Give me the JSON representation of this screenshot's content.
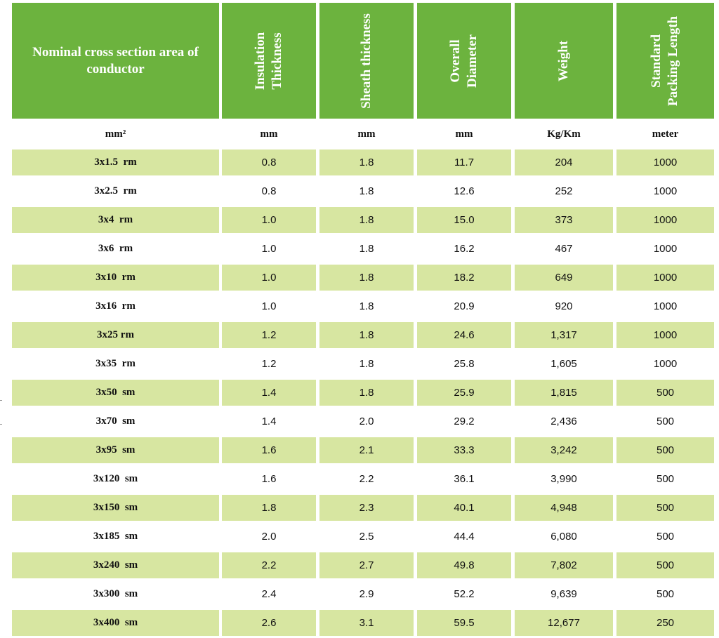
{
  "headers": [
    {
      "text": "Nominal cross section area of conductor",
      "vertical": false
    },
    {
      "text": "Insulation Thickness",
      "vertical": true,
      "lines": [
        "Insulation",
        "Thickness"
      ]
    },
    {
      "text": "Sheath thickness",
      "vertical": true,
      "lines": [
        "Sheath thickness"
      ]
    },
    {
      "text": "Overall Diameter",
      "vertical": true,
      "lines": [
        "Overall",
        "Diameter"
      ]
    },
    {
      "text": "Weight",
      "vertical": true,
      "lines": [
        "Weight"
      ]
    },
    {
      "text": "Standard Packing Length",
      "vertical": true,
      "lines": [
        "Standard",
        "Packing Length"
      ]
    }
  ],
  "units": [
    "mm²",
    "mm",
    "mm",
    "mm",
    "Kg/Km",
    "meter"
  ],
  "rows": [
    [
      "3x1.5  rm",
      "0.8",
      "1.8",
      "11.7",
      "204",
      "1000"
    ],
    [
      "3x2.5  rm",
      "0.8",
      "1.8",
      "12.6",
      "252",
      "1000"
    ],
    [
      "3x4  rm",
      "1.0",
      "1.8",
      "15.0",
      "373",
      "1000"
    ],
    [
      "3x6  rm",
      "1.0",
      "1.8",
      "16.2",
      "467",
      "1000"
    ],
    [
      "3x10  rm",
      "1.0",
      "1.8",
      "18.2",
      "649",
      "1000"
    ],
    [
      "3x16  rm",
      "1.0",
      "1.8",
      "20.9",
      "920",
      "1000"
    ],
    [
      "3x25 rm",
      "1.2",
      "1.8",
      "24.6",
      "1,317",
      "1000"
    ],
    [
      "3x35  rm",
      "1.2",
      "1.8",
      "25.8",
      "1,605",
      "1000"
    ],
    [
      "3x50  sm",
      "1.4",
      "1.8",
      "25.9",
      "1,815",
      "500"
    ],
    [
      "3x70  sm",
      "1.4",
      "2.0",
      "29.2",
      "2,436",
      "500"
    ],
    [
      "3x95  sm",
      "1.6",
      "2.1",
      "33.3",
      "3,242",
      "500"
    ],
    [
      "3x120  sm",
      "1.6",
      "2.2",
      "36.1",
      "3,990",
      "500"
    ],
    [
      "3x150  sm",
      "1.8",
      "2.3",
      "40.1",
      "4,948",
      "500"
    ],
    [
      "3x185  sm",
      "2.0",
      "2.5",
      "44.4",
      "6,080",
      "500"
    ],
    [
      "3x240  sm",
      "2.2",
      "2.7",
      "49.8",
      "7,802",
      "500"
    ],
    [
      "3x300  sm",
      "2.4",
      "2.9",
      "52.2",
      "9,639",
      "500"
    ],
    [
      "3x400  sm",
      "2.6",
      "3.1",
      "59.5",
      "12,677",
      "250"
    ]
  ],
  "colors": {
    "header_bg": "#6cb33e",
    "row_shade": "#d7e6a1"
  }
}
